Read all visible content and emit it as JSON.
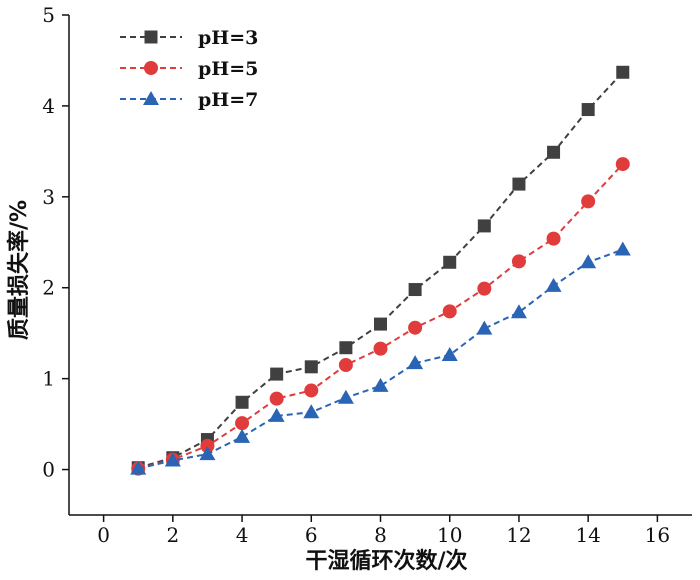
{
  "chart_data": {
    "type": "line",
    "xlabel": "干湿循环次数/次",
    "ylabel": "质量损失率/%",
    "xlim": [
      -1,
      17
    ],
    "ylim": [
      -0.5,
      5
    ],
    "xticks": [
      0,
      2,
      4,
      6,
      8,
      10,
      12,
      14,
      16
    ],
    "yticks": [
      0,
      1,
      2,
      3,
      4,
      5
    ],
    "x": [
      1,
      2,
      3,
      4,
      5,
      6,
      7,
      8,
      9,
      10,
      11,
      12,
      13,
      14,
      15
    ],
    "legend_position": "top-left",
    "grid": false,
    "series": [
      {
        "name": "pH=3",
        "color": "#404040",
        "marker": "square",
        "values": [
          0.02,
          0.13,
          0.33,
          0.74,
          1.05,
          1.13,
          1.34,
          1.6,
          1.98,
          2.28,
          2.68,
          3.14,
          3.49,
          3.96,
          4.37
        ]
      },
      {
        "name": "pH=5",
        "color": "#e03c3c",
        "marker": "circle",
        "values": [
          0.01,
          0.11,
          0.26,
          0.51,
          0.78,
          0.87,
          1.15,
          1.33,
          1.56,
          1.74,
          1.99,
          2.29,
          2.54,
          2.95,
          3.36
        ]
      },
      {
        "name": "pH=7",
        "color": "#2a64b4",
        "marker": "triangle",
        "values": [
          0.01,
          0.1,
          0.17,
          0.36,
          0.59,
          0.63,
          0.79,
          0.92,
          1.17,
          1.26,
          1.55,
          1.73,
          2.02,
          2.28,
          2.42
        ]
      }
    ]
  }
}
